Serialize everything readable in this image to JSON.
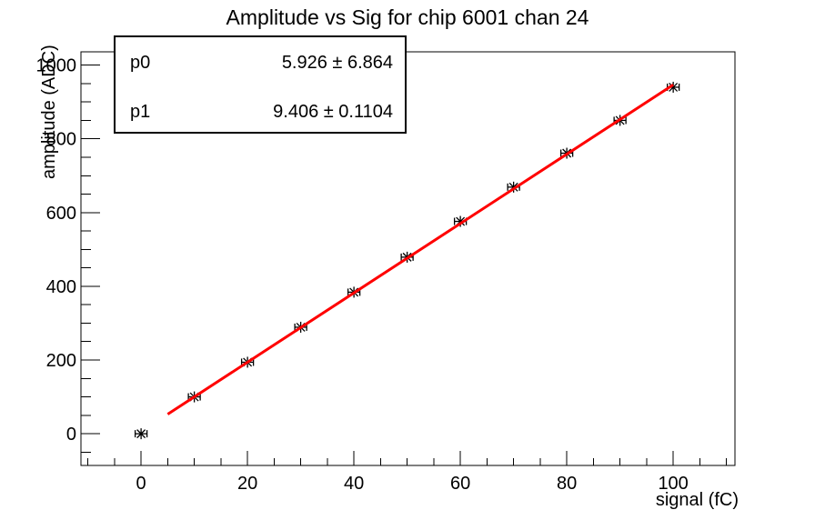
{
  "chart_data": {
    "type": "scatter",
    "title": "Amplitude vs Sig for chip 6001 chan 24",
    "xlabel": "signal (fC)",
    "ylabel": "amplitude (ADC)",
    "x": [
      0,
      10,
      20,
      30,
      40,
      50,
      60,
      70,
      80,
      90,
      100
    ],
    "y": [
      0,
      100,
      194,
      289,
      384,
      479,
      576,
      669,
      761,
      850,
      940
    ],
    "x_error": 1,
    "marker": "asterisk-with-x-error-bars",
    "xlim": [
      -11.3,
      111.6
    ],
    "ylim": [
      -86,
      1036
    ],
    "x_major_ticks": [
      0,
      20,
      40,
      60,
      80,
      100
    ],
    "x_minor_step": 5,
    "y_major_ticks": [
      0,
      200,
      400,
      600,
      800,
      1000
    ],
    "y_minor_step": 50,
    "grid": false,
    "legend_position": "none",
    "fit_line": {
      "p0": 5.926,
      "p1": 9.406,
      "x_start": 5,
      "x_end": 100,
      "width": 3
    },
    "colors": {
      "background": "#ffffff",
      "foreground": "#000000",
      "fit_line": "#ff0000",
      "marker": "#000000"
    }
  },
  "stats_box": {
    "rows": [
      {
        "label": "p0",
        "value": "5.926 ± 6.864"
      },
      {
        "label": "p1",
        "value": "9.406 ± 0.1104"
      }
    ]
  }
}
